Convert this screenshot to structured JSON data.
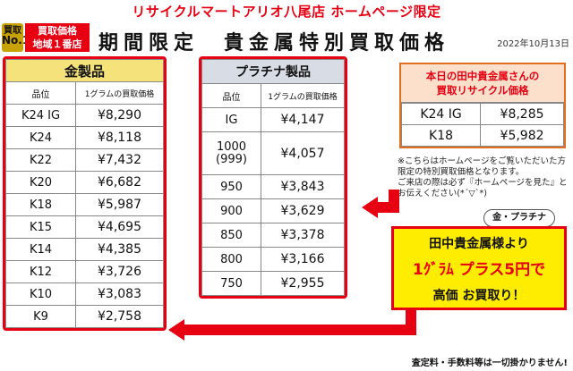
{
  "header": {
    "store_title": "リサイクルマートアリオ八尾店 ホームページ限定",
    "main_title": "期間限定　貴金属特別買取価格",
    "date": "2022年10月13日"
  },
  "badge": {
    "rank_small": "買取",
    "rank_big": "No.1",
    "line1": "買取価格",
    "line2": "地域１番店"
  },
  "gold": {
    "title": "金製品",
    "col_grade": "品位",
    "col_price": "1グラムの買取価格",
    "rows": [
      {
        "grade": "K24 IG",
        "price": "¥8,290"
      },
      {
        "grade": "K24",
        "price": "¥8,118"
      },
      {
        "grade": "K22",
        "price": "¥7,432"
      },
      {
        "grade": "K20",
        "price": "¥6,682"
      },
      {
        "grade": "K18",
        "price": "¥5,987"
      },
      {
        "grade": "K15",
        "price": "¥4,695"
      },
      {
        "grade": "K14",
        "price": "¥4,385"
      },
      {
        "grade": "K12",
        "price": "¥3,726"
      },
      {
        "grade": "K10",
        "price": "¥3,083"
      },
      {
        "grade": "K9",
        "price": "¥2,758"
      }
    ]
  },
  "platinum": {
    "title": "プラチナ製品",
    "col_grade": "品位",
    "col_price": "1グラムの買取価格",
    "rows": [
      {
        "grade": "IG",
        "grade2": "",
        "price": "¥4,147"
      },
      {
        "grade": "1000",
        "grade2": "(999)",
        "price": "¥4,057"
      },
      {
        "grade": "950",
        "grade2": "",
        "price": "¥3,843"
      },
      {
        "grade": "900",
        "grade2": "",
        "price": "¥3,629"
      },
      {
        "grade": "850",
        "grade2": "",
        "price": "¥3,378"
      },
      {
        "grade": "800",
        "grade2": "",
        "price": "¥3,166"
      },
      {
        "grade": "750",
        "grade2": "",
        "price": "¥2,955"
      }
    ]
  },
  "tanaka": {
    "title_line1": "本日の田中貴金属さんの",
    "title_line2": "買取リサイクル価格",
    "rows": [
      {
        "grade": "K24 IG",
        "price": "¥8,285"
      },
      {
        "grade": "K18",
        "price": "¥5,982"
      }
    ]
  },
  "note": {
    "line1": "※こちらはホームページをご覧いただいた方限定の特別買取価格となります。",
    "line2": "ご来店の際は必ず『ホームページを見た』とお伝えください(*´▽`*)"
  },
  "pill_label": "金・プラチナ",
  "promo": {
    "line1": "田中貴金属様より",
    "line2": "1ｸﾞﾗﾑ プラス5円で",
    "line3": "高価 お買取り！"
  },
  "footer": "査定料・手数料等は一切掛かりません!",
  "colors": {
    "accent_red": "#e60012",
    "promo_yellow": "#ffed00",
    "gold_header": "#f5e27a",
    "plat_header": "#d8dde5"
  }
}
